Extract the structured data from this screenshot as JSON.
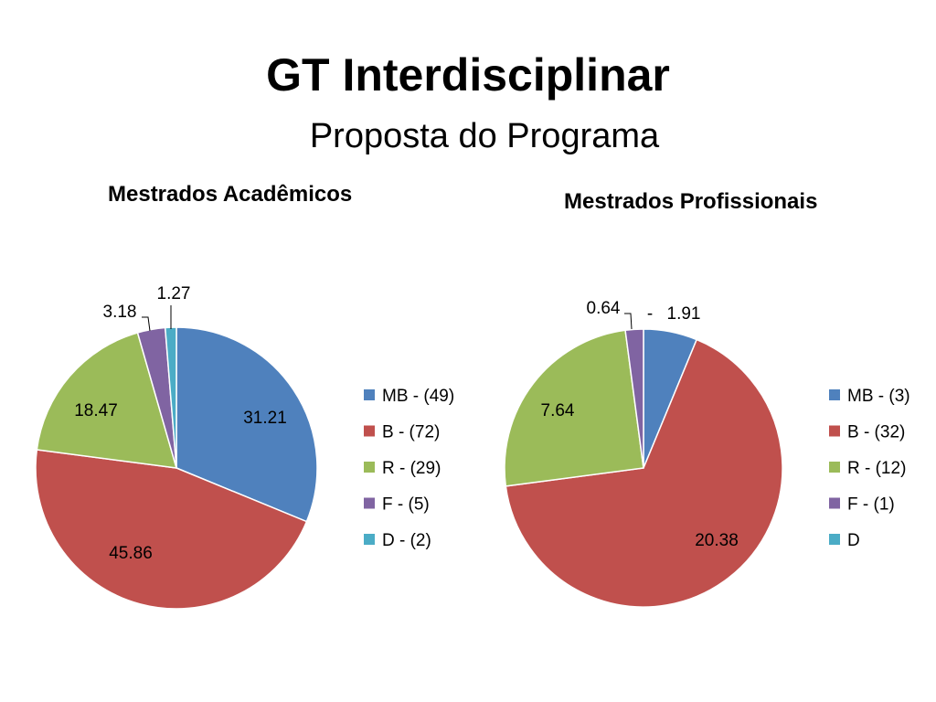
{
  "slide": {
    "title": "GT Interdisciplinar",
    "subtitle": "Proposta do Programa"
  },
  "chart_data": [
    {
      "type": "pie",
      "title": "Mestrados Acadêmicos",
      "legend_position": "right",
      "series": [
        {
          "name": "MB - (49)",
          "value": 31.21,
          "label": "31.21",
          "color": "#4F81BD"
        },
        {
          "name": "B - (72)",
          "value": 45.86,
          "label": "45.86",
          "color": "#C0504D"
        },
        {
          "name": "R - (29)",
          "value": 18.47,
          "label": "18.47",
          "color": "#9BBB59"
        },
        {
          "name": "F - (5)",
          "value": 3.18,
          "label": "3.18",
          "color": "#8064A2"
        },
        {
          "name": "D - (2)",
          "value": 1.27,
          "label": "1.27",
          "color": "#4BACC6"
        }
      ]
    },
    {
      "type": "pie",
      "title": "Mestrados Profissionais",
      "legend_position": "right",
      "series": [
        {
          "name": "MB - (3)",
          "value": 1.91,
          "label": "1.91",
          "color": "#4F81BD"
        },
        {
          "name": "B - (32)",
          "value": 20.38,
          "label": "20.38",
          "color": "#C0504D"
        },
        {
          "name": "R - (12)",
          "value": 7.64,
          "label": "7.64",
          "color": "#9BBB59"
        },
        {
          "name": "F - (1)",
          "value": 0.64,
          "label": "0.64",
          "color": "#8064A2"
        },
        {
          "name": "D",
          "value": 0,
          "label": "-",
          "color": "#4BACC6"
        }
      ]
    }
  ]
}
